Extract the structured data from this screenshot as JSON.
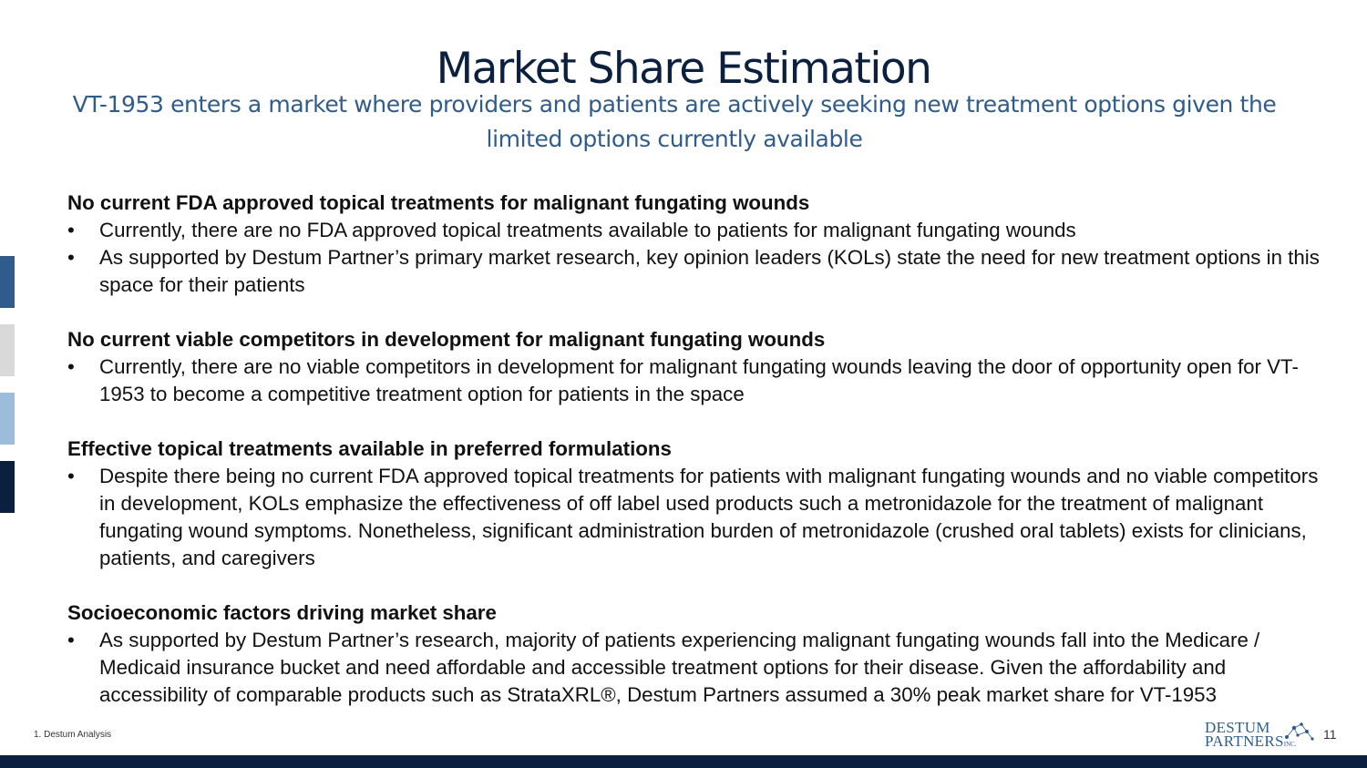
{
  "slide": {
    "title": "Market Share Estimation",
    "subtitle": "VT-1953 enters a market where providers and patients are actively seeking new treatment options given the limited options currently available",
    "page_number": "11",
    "footnote": "1. Destum Analysis"
  },
  "sections": [
    {
      "heading": "No current FDA approved topical treatments for malignant fungating wounds",
      "bullets": [
        "Currently, there are no FDA approved topical treatments available to patients for malignant fungating wounds",
        "As supported by Destum Partner’s primary market research, key opinion leaders (KOLs) state the need for new treatment options in this space for their patients"
      ]
    },
    {
      "heading": "No current viable competitors in development for malignant fungating wounds",
      "bullets": [
        "Currently, there are no viable competitors in development for malignant fungating wounds leaving the door of opportunity open for VT-1953 to become a competitive treatment option for patients in the space"
      ]
    },
    {
      "heading": "Effective topical treatments available in preferred formulations",
      "bullets": [
        "Despite there being no current FDA approved topical treatments for patients with malignant fungating wounds and no viable competitors in development, KOLs emphasize the effectiveness of off label used products such a metronidazole for the treatment of malignant fungating wound symptoms.  Nonetheless, significant administration burden of metronidazole (crushed oral tablets) exists for clinicians, patients, and caregivers"
      ]
    },
    {
      "heading": "Socioeconomic factors driving market share",
      "bullets": [
        "As supported by Destum Partner’s research, majority of patients experiencing malignant fungating wounds fall into the Medicare / Medicaid insurance bucket and need affordable and accessible treatment options for their disease. Given the affordability and accessibility of comparable products such as StrataXRL®, Destum Partners assumed a 30% peak market share for VT-1953"
      ]
    }
  ],
  "bullet_symbol": "•",
  "logo": {
    "line1": "DESTUM",
    "line2": "PARTNERS",
    "suffix": "INC."
  },
  "colors": {
    "title": "#0b1f3f",
    "subtitle": "#2f5c8c",
    "bottom_bar": "#0b1f3f",
    "side_block_1": "#2f5c8c",
    "side_block_2": "#d9d9d9",
    "side_block_3": "#9dbcdb",
    "side_block_4": "#0b1f3f"
  }
}
